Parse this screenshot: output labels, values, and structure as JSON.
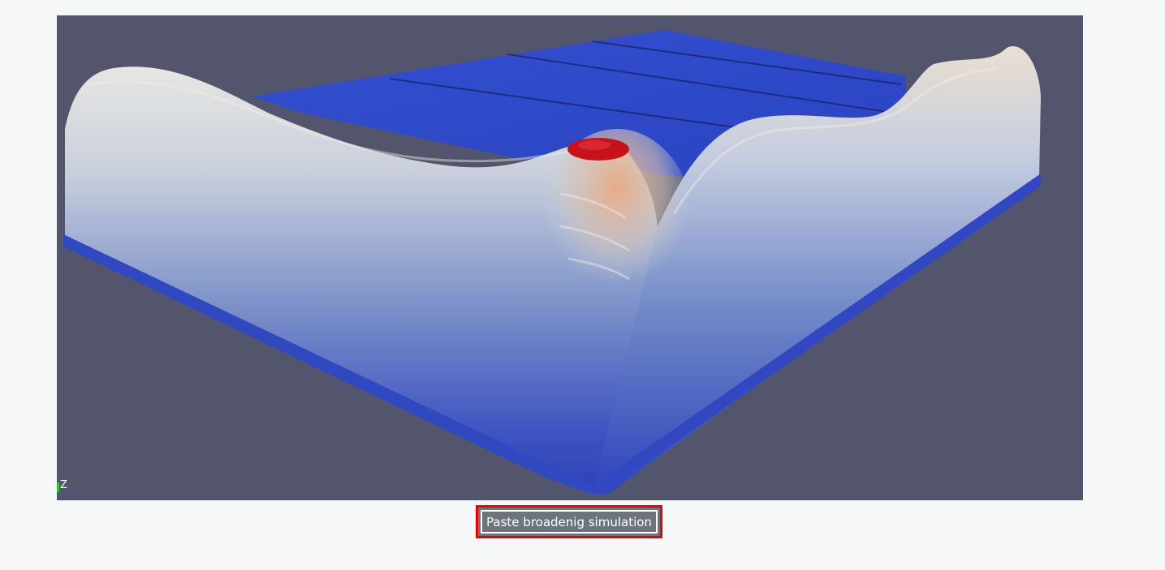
{
  "viewport": {
    "background_color": "#52556b",
    "axis_label": "Z",
    "visualization": "3D surface rendering of paste broadening simulation"
  },
  "colors": {
    "surface_low": "#2f44c0",
    "surface_mid": "#c9d2e0",
    "surface_high": "#e6b08a",
    "surface_peak": "#c8121a",
    "button_bg": "#6c757d",
    "button_highlight_border": "#ee0000"
  },
  "action_button": {
    "label": "Paste broadenig simulation"
  }
}
